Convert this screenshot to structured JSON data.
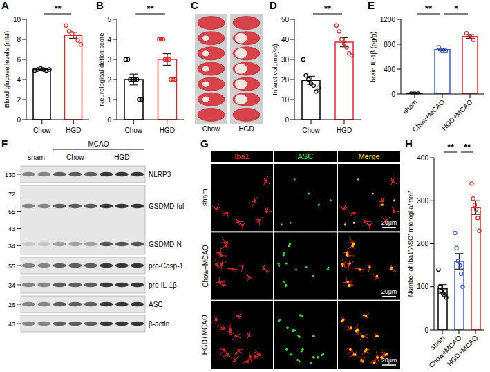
{
  "chart_data": [
    {
      "panel": "A",
      "type": "bar",
      "y_label": "Blood glucose levels (mM)",
      "categories": [
        "Chow",
        "HGD"
      ],
      "values": [
        5.0,
        8.4
      ],
      "errors": [
        0.05,
        0.3
      ],
      "points": [
        [
          4.9,
          5.0,
          5.1,
          5.0,
          4.9,
          5.0
        ],
        [
          9.4,
          8.8,
          8.6,
          8.3,
          7.9,
          7.5
        ]
      ],
      "colors": [
        "#000000",
        "#e8262a"
      ],
      "ylim": [
        0,
        10
      ],
      "yticks": [
        0,
        2,
        4,
        6,
        8,
        10
      ],
      "annotations": [
        {
          "from": "Chow",
          "to": "HGD",
          "label": "**"
        }
      ]
    },
    {
      "panel": "B",
      "type": "bar",
      "y_label": "Neurological deficit score",
      "categories": [
        "Chow",
        "HGD"
      ],
      "values": [
        2.0,
        3.0
      ],
      "errors": [
        0.27,
        0.29
      ],
      "points": [
        [
          3,
          3,
          2,
          2,
          2,
          2,
          1,
          1
        ],
        [
          4,
          4,
          4,
          3,
          3,
          3,
          2,
          2,
          2
        ]
      ],
      "colors": [
        "#000000",
        "#e8262a"
      ],
      "ylim": [
        0,
        5
      ],
      "yticks": [
        0,
        1,
        2,
        3,
        4,
        5
      ],
      "annotations": [
        {
          "from": "Chow",
          "to": "HGD",
          "label": "**"
        }
      ]
    },
    {
      "panel": "D",
      "type": "bar",
      "y_label": "Infarct volume(%)",
      "categories": [
        "Chow",
        "HGD"
      ],
      "values": [
        19.6,
        38.6
      ],
      "errors": [
        2.0,
        2.3
      ],
      "points": [
        [
          30,
          22,
          20,
          18,
          17,
          14,
          16
        ],
        [
          47,
          44,
          40,
          38,
          36,
          33,
          32
        ]
      ],
      "colors": [
        "#000000",
        "#e8262a"
      ],
      "ylim": [
        0,
        50
      ],
      "yticks": [
        0,
        10,
        20,
        30,
        40,
        50
      ],
      "annotations": [
        {
          "from": "Chow",
          "to": "HGD",
          "label": "**"
        }
      ]
    },
    {
      "panel": "E",
      "type": "bar",
      "y_label": "brain IL-1β (pg/g)",
      "categories": [
        "sham",
        "Chow+MCAO",
        "HGD+MCAO"
      ],
      "values": [
        5,
        715,
        925
      ],
      "errors": [
        3,
        18,
        30
      ],
      "points": [
        [
          5,
          5,
          5
        ],
        [
          750,
          700,
          695
        ],
        [
          975,
          930,
          870
        ]
      ],
      "colors": [
        "#000000",
        "#3a5bd9",
        "#e8262a"
      ],
      "ylim": [
        0,
        1200
      ],
      "yticks": [
        0,
        400,
        800,
        1200
      ],
      "annotations": [
        {
          "from": "sham",
          "to": "Chow+MCAO",
          "label": "**"
        },
        {
          "from": "Chow+MCAO",
          "to": "HGD+MCAO",
          "label": "*"
        }
      ]
    },
    {
      "panel": "H",
      "type": "bar",
      "y_label": "Number of Iba1⁺ASC⁺ microglia/mm²",
      "categories": [
        "sham",
        "Chow+MCAO",
        "HGD+MCAO"
      ],
      "values": [
        95,
        159,
        284
      ],
      "errors": [
        10,
        18,
        16
      ],
      "points": [
        [
          140,
          100,
          90,
          85,
          80,
          75
        ],
        [
          225,
          190,
          160,
          150,
          130,
          100
        ],
        [
          340,
          305,
          290,
          280,
          260,
          230
        ]
      ],
      "colors": [
        "#000000",
        "#3a5bd9",
        "#e8262a"
      ],
      "ylim": [
        0,
        400
      ],
      "yticks": [
        0,
        100,
        200,
        300,
        400
      ],
      "annotations": [
        {
          "from": "sham",
          "to": "Chow+MCAO",
          "label": "**"
        },
        {
          "from": "Chow+MCAO",
          "to": "HGD+MCAO",
          "label": "**"
        }
      ]
    }
  ],
  "panels": [
    {
      "panel": "C",
      "labels": [
        "Chow",
        "HGD"
      ]
    },
    {
      "panel": "F",
      "super_group": {
        "label": "MCAO",
        "groups": [
          "Chow",
          "HGD"
        ]
      },
      "lane_groups": [
        {
          "label": "sham",
          "lanes": 2
        },
        {
          "label": "Chow",
          "lanes": 3
        },
        {
          "label": "HGD",
          "lanes": 3
        }
      ],
      "blots": [
        {
          "labels": [
            "NLRP3"
          ],
          "markers": [
            130
          ]
        },
        {
          "labels": [
            "GSDMD-ful",
            "GSDMD-N"
          ],
          "markers": [
            72,
            55,
            43,
            34
          ]
        },
        {
          "labels": [
            "pro-Casp-1"
          ],
          "markers": [
            55
          ]
        },
        {
          "labels": [
            "pro-IL-1β"
          ],
          "markers": [
            34
          ]
        },
        {
          "labels": [
            "ASC"
          ],
          "markers": [
            26
          ]
        },
        {
          "labels": [
            "β-actin"
          ],
          "markers": [
            43
          ]
        }
      ]
    },
    {
      "panel": "G",
      "columns": [
        "Iba1",
        "ASC",
        "Merge"
      ],
      "rows": [
        "sham",
        "Chow+MCAO",
        "HGD+MCAO"
      ],
      "scale_bar": "20μm"
    }
  ]
}
